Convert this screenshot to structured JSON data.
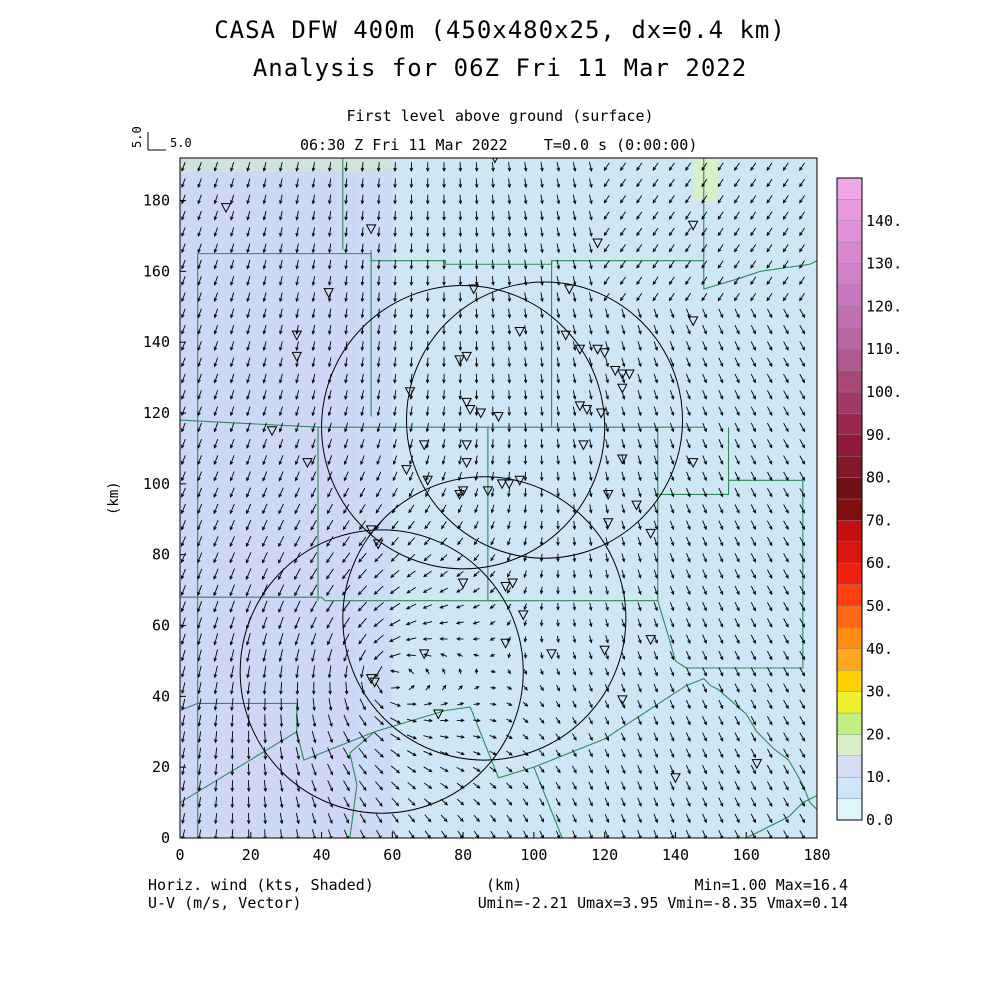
{
  "header": {
    "title_line1": "CASA DFW 400m (450x480x25, dx=0.4 km)",
    "title_line2": "Analysis for 06Z Fri 11 Mar 2022",
    "subtitle_level": "First level above ground (surface)",
    "subtitle_time": "06:30 Z Fri 11 Mar 2022    T=0.0 s (0:00:00)",
    "ref_vector_label": "5.0",
    "ref_vector_vert": "5.0"
  },
  "footer": {
    "left_line1": "Horiz. wind (kts, Shaded)",
    "left_line2": "U-V (m/s, Vector)",
    "center": "(km)",
    "right_line1": "Min=1.00 Max=16.4",
    "right_line2": "Umin=-2.21 Umax=3.95 Vmin=-8.35 Vmax=0.14"
  },
  "colors": {
    "county_lines": "#2e8b57",
    "circles": "#000000",
    "vectors": "#000000"
  },
  "chart_data": {
    "type": "heatmap",
    "xlabel": "(km)",
    "ylabel": "(km)",
    "xlim": [
      0,
      180
    ],
    "ylim": [
      0,
      192
    ],
    "xticks": [
      "0",
      "20",
      "40",
      "60",
      "80",
      "100",
      "120",
      "140",
      "160",
      "180"
    ],
    "yticks": [
      "0",
      "20",
      "40",
      "60",
      "80",
      "100",
      "120",
      "140",
      "160",
      "180"
    ],
    "colorbar": {
      "labels": [
        "0.0",
        "10.",
        "20.",
        "30.",
        "40.",
        "50.",
        "60.",
        "70.",
        "80.",
        "90.",
        "100.",
        "110.",
        "120.",
        "130.",
        "140."
      ],
      "colors": [
        "#e0f4fc",
        "#cfe6f7",
        "#d4dcf8",
        "#d8f0c8",
        "#c2f080",
        "#f0f030",
        "#fed200",
        "#fea820",
        "#fe8c10",
        "#fe6818",
        "#fe4010",
        "#ee2010",
        "#d81810",
        "#c01010",
        "#801010",
        "#701018",
        "#801828",
        "#901838",
        "#982850",
        "#a03868",
        "#a84878",
        "#b05890",
        "#b868a0",
        "#c070b0",
        "#c878c0",
        "#d080c8",
        "#d888d0",
        "#e090d8",
        "#e898e0",
        "#f0a8e8"
      ]
    },
    "shading": [
      {
        "x": [
          0,
          50
        ],
        "y": [
          0,
          192
        ],
        "value": 11
      },
      {
        "x": [
          50,
          180
        ],
        "y": [
          0,
          192
        ],
        "value": 9
      },
      {
        "x": [
          0,
          60
        ],
        "y": [
          188,
          192
        ],
        "value": 18
      },
      {
        "x": [
          145,
          152
        ],
        "y": [
          180,
          192
        ],
        "value": 18
      }
    ],
    "wind_field": {
      "description": "northerly flow with cyclonic circulation near (60,45)",
      "vortex_center": [
        58,
        45
      ]
    },
    "radar_circles": [
      {
        "center": [
          80,
          116
        ],
        "radius_km": 40
      },
      {
        "center": [
          57,
          47
        ],
        "radius_km": 40
      },
      {
        "center": [
          86,
          62
        ],
        "radius_km": 40
      },
      {
        "center": [
          103,
          118
        ],
        "radius_km": 39
      }
    ],
    "stations": [
      [
        13,
        178
      ],
      [
        54,
        172
      ],
      [
        118,
        168
      ],
      [
        145,
        173
      ],
      [
        42,
        154
      ],
      [
        83,
        155
      ],
      [
        110,
        155
      ],
      [
        33,
        142
      ],
      [
        33,
        136
      ],
      [
        81,
        136
      ],
      [
        79,
        135
      ],
      [
        96,
        143
      ],
      [
        109,
        142
      ],
      [
        113,
        138
      ],
      [
        118,
        138
      ],
      [
        120,
        137
      ],
      [
        123,
        132
      ],
      [
        125,
        131
      ],
      [
        127,
        131
      ],
      [
        145,
        146
      ],
      [
        125,
        127
      ],
      [
        65,
        126
      ],
      [
        81,
        123
      ],
      [
        82,
        121
      ],
      [
        85,
        120
      ],
      [
        90,
        119
      ],
      [
        113,
        122
      ],
      [
        115,
        121
      ],
      [
        119,
        120
      ],
      [
        26,
        115
      ],
      [
        69,
        111
      ],
      [
        81,
        111
      ],
      [
        114,
        111
      ],
      [
        36,
        106
      ],
      [
        64,
        104
      ],
      [
        70,
        101
      ],
      [
        81,
        106
      ],
      [
        96,
        101
      ],
      [
        93,
        100
      ],
      [
        80,
        98
      ],
      [
        79,
        97
      ],
      [
        87,
        98
      ],
      [
        91,
        100
      ],
      [
        125,
        107
      ],
      [
        121,
        97
      ],
      [
        129,
        94
      ],
      [
        121,
        89
      ],
      [
        133,
        86
      ],
      [
        54,
        87
      ],
      [
        56,
        83
      ],
      [
        80,
        72
      ],
      [
        94,
        72
      ],
      [
        92,
        71
      ],
      [
        97,
        63
      ],
      [
        133,
        56
      ],
      [
        92,
        55
      ],
      [
        120,
        53
      ],
      [
        105,
        52
      ],
      [
        69,
        52
      ],
      [
        54,
        45
      ],
      [
        55,
        44
      ],
      [
        73,
        35
      ],
      [
        125,
        39
      ],
      [
        145,
        106
      ],
      [
        140,
        17
      ],
      [
        163,
        21
      ],
      [
        89,
        192
      ]
    ]
  }
}
